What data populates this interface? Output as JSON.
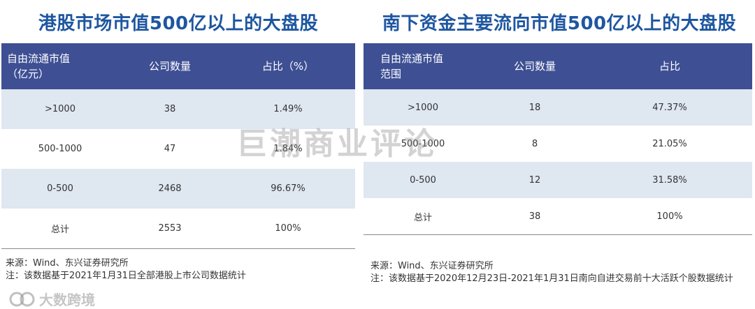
{
  "left": {
    "title": "港股市场市值500亿以上的大盘股",
    "headers": [
      "自由流通市值\n（亿元）",
      "公司数量",
      "占比（%）"
    ],
    "rows": [
      [
        ">1000",
        "38",
        "1.49%"
      ],
      [
        "500-1000",
        "47",
        "1.84%"
      ],
      [
        "0-500",
        "2468",
        "96.67%"
      ],
      [
        "总计",
        "2553",
        "100%"
      ]
    ],
    "source": "来源：Wind、东兴证券研究所",
    "note": "注：该数据基于2021年1月31日全部港股上市公司数据统计"
  },
  "right": {
    "title": "南下资金主要流向市值500亿以上的大盘股",
    "headers": [
      "自由流通市值\n范围",
      "公司数量",
      "占比"
    ],
    "rows": [
      [
        ">1000",
        "18",
        "47.37%"
      ],
      [
        "500-1000",
        "8",
        "21.05%"
      ],
      [
        "0-500",
        "12",
        "31.58%"
      ],
      [
        "总计",
        "38",
        "100%"
      ]
    ],
    "source": "来源：Wind、东兴证券研究所",
    "note": "注：该数据基于2020年12月23日-2021年1月31日南向自进交易前十大活跃个股数据统计"
  },
  "watermark": "巨潮商业评论",
  "brand": "大数跨境",
  "colors": {
    "title": "#1e56a0",
    "header_bg": "#3e4f94",
    "alt_row": "#dfe7f1"
  }
}
